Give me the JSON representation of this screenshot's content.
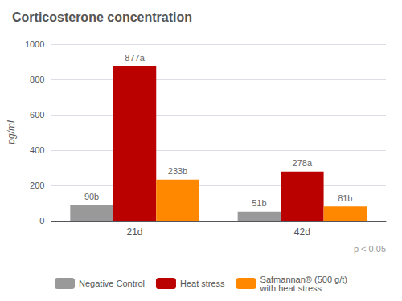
{
  "chart_data": {
    "type": "bar",
    "title": "Corticosterone concentration",
    "ylabel": "pg/ml",
    "categories": [
      "21d",
      "42d"
    ],
    "series": [
      {
        "name": "Negative Control",
        "color": "#999999",
        "values": [
          90,
          51
        ],
        "value_labels": [
          "90b",
          "51b"
        ]
      },
      {
        "name": "Heat stress",
        "color": "#bb0000",
        "values": [
          877,
          278
        ],
        "value_labels": [
          "877a",
          "278a"
        ]
      },
      {
        "name": "Safmannan® (500 g/t)\nwith heat stress",
        "color": "#ff8800",
        "values": [
          233,
          81
        ],
        "value_labels": [
          "233b",
          "81b"
        ]
      }
    ],
    "ylim": [
      0,
      1000
    ],
    "yticks": [
      0,
      200,
      400,
      600,
      800,
      1000
    ],
    "grid": true,
    "data_labels": true,
    "legend": "bottom",
    "annotation": "p < 0.05"
  }
}
